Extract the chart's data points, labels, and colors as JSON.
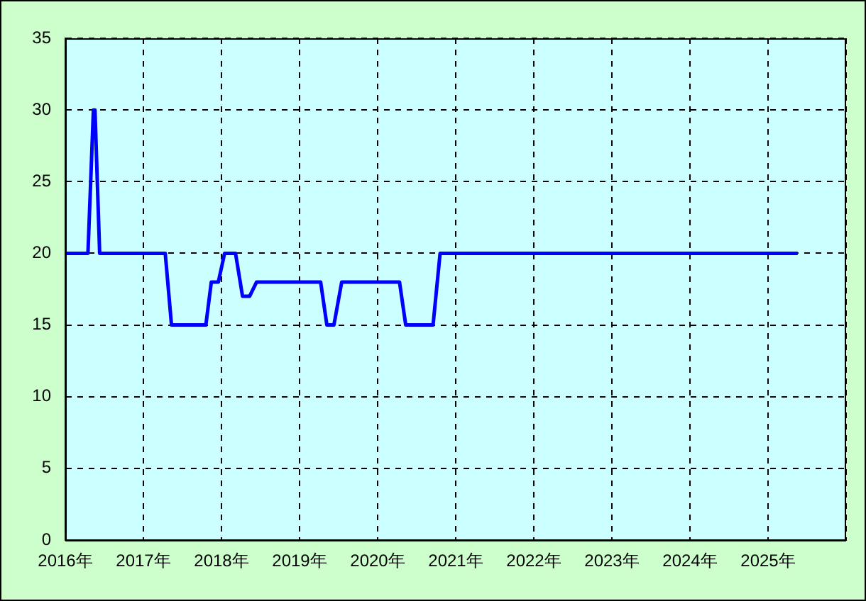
{
  "chart_data": {
    "type": "line",
    "x": [
      2016.0,
      2016.29,
      2016.36,
      2016.38,
      2016.44,
      2017.28,
      2017.36,
      2017.8,
      2017.87,
      2017.96,
      2018.04,
      2018.18,
      2018.27,
      2018.36,
      2018.45,
      2019.27,
      2019.35,
      2019.44,
      2019.54,
      2020.28,
      2020.36,
      2020.71,
      2020.8,
      2025.38
    ],
    "series": [
      {
        "color": "#0000ff",
        "values": [
          20,
          20,
          30,
          30,
          20,
          20,
          15,
          15,
          18,
          18,
          20,
          20,
          17,
          17,
          18,
          18,
          15,
          15,
          18,
          18,
          15,
          15,
          20,
          20
        ]
      }
    ],
    "xlim": [
      2016,
      2026
    ],
    "xticks": [
      {
        "value": 2016,
        "label": "2016年"
      },
      {
        "value": 2017,
        "label": "2017年"
      },
      {
        "value": 2018,
        "label": "2018年"
      },
      {
        "value": 2019,
        "label": "2019年"
      },
      {
        "value": 2020,
        "label": "2020年"
      },
      {
        "value": 2021,
        "label": "2021年"
      },
      {
        "value": 2022,
        "label": "2022年"
      },
      {
        "value": 2023,
        "label": "2023年"
      },
      {
        "value": 2024,
        "label": "2024年"
      },
      {
        "value": 2025,
        "label": "2025年"
      },
      {
        "value": 2026,
        "label": null
      }
    ],
    "ylim": [
      0,
      35
    ],
    "yticks": [
      0,
      5,
      10,
      15,
      20,
      25,
      30,
      35
    ],
    "grid": true,
    "legend": false,
    "marker": "none",
    "line_style": "solid"
  }
}
